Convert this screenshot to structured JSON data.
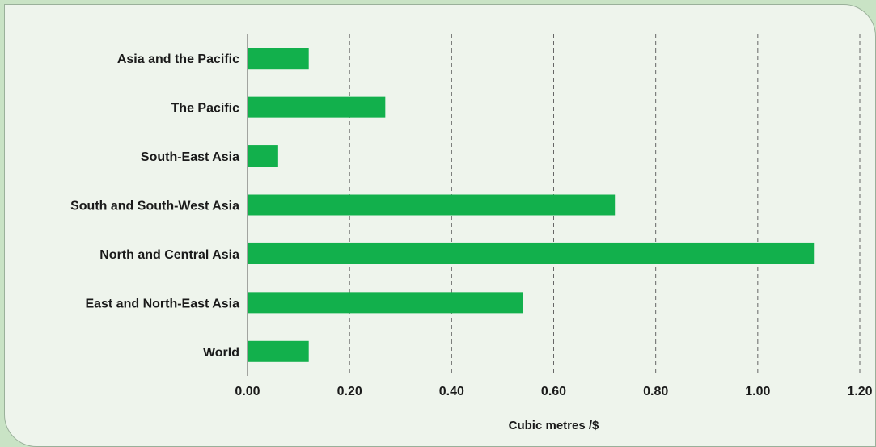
{
  "chart_data": {
    "type": "bar",
    "orientation": "horizontal",
    "categories": [
      "Asia and the Pacific",
      "The Pacific",
      "South-East Asia",
      "South and South-West Asia",
      "North and Central Asia",
      "East and North-East Asia",
      "World"
    ],
    "values": [
      0.12,
      0.27,
      0.06,
      0.72,
      1.11,
      0.54,
      0.12
    ],
    "xlabel": "Cubic metres /$",
    "ylabel": "",
    "xlim": [
      0,
      1.2
    ],
    "x_ticks": [
      "0.00",
      "0.20",
      "0.40",
      "0.60",
      "0.80",
      "1.00",
      "1.20"
    ],
    "grid": "vertical dashed",
    "bar_color": "#12b04c"
  }
}
